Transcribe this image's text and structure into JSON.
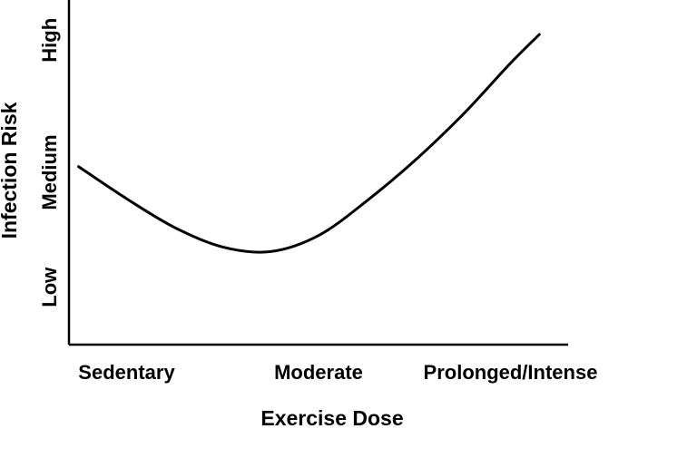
{
  "chart_data": {
    "type": "line",
    "title": "",
    "xlabel": "Exercise Dose",
    "ylabel": "Infection Risk",
    "x_categories": [
      "Sedentary",
      "Moderate",
      "Prolonged/Intense"
    ],
    "y_categories": [
      "Low",
      "Medium",
      "High"
    ],
    "xlim": [
      -0.3,
      2.3
    ],
    "ylim": [
      0.0,
      3.0
    ],
    "grid": false,
    "series": [
      {
        "x": [
          -0.25,
          0.0,
          0.25,
          0.5,
          0.75,
          1.0,
          1.25,
          1.5,
          1.75,
          2.0,
          2.15
        ],
        "y": [
          1.55,
          1.27,
          1.02,
          0.85,
          0.81,
          0.95,
          1.25,
          1.6,
          2.0,
          2.45,
          2.7
        ]
      }
    ],
    "colors": {
      "line": "#000000",
      "axis": "#000000"
    }
  }
}
